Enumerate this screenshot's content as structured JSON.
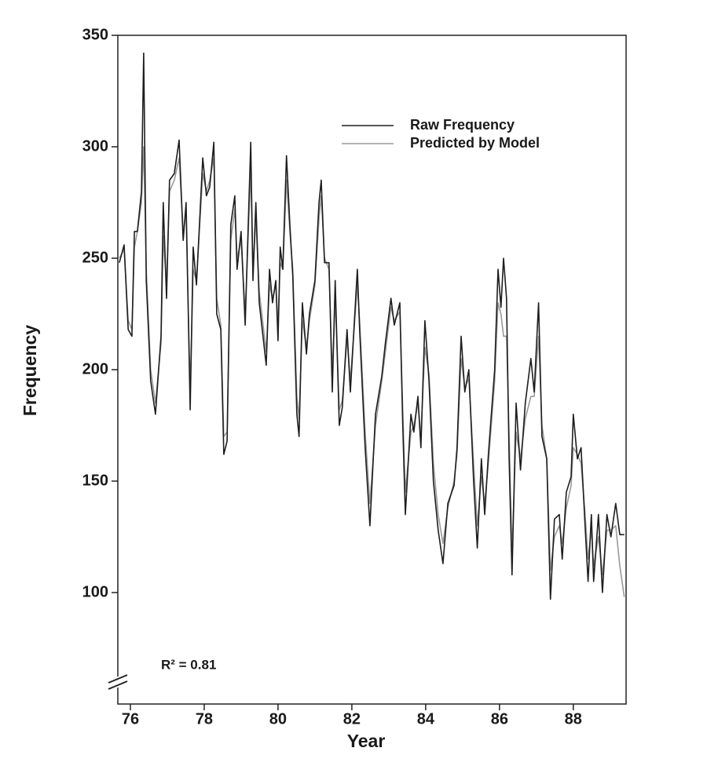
{
  "chart_data": {
    "type": "line",
    "xlabel": "Year",
    "ylabel": "Frequency",
    "annotation": "R² = 0.81",
    "legend": "upper right",
    "xlim": [
      75.66,
      89.43
    ],
    "xticks": [
      76,
      78,
      80,
      82,
      84,
      86,
      88
    ],
    "ylim": [
      50,
      350
    ],
    "yticks": [
      100,
      150,
      200,
      250,
      300,
      350
    ],
    "x": [
      75.7,
      75.83,
      75.94,
      76.04,
      76.11,
      76.19,
      76.3,
      76.36,
      76.43,
      76.55,
      76.68,
      76.83,
      76.89,
      76.98,
      77.06,
      77.19,
      77.32,
      77.43,
      77.51,
      77.62,
      77.7,
      77.79,
      77.96,
      78.06,
      78.15,
      78.26,
      78.34,
      78.45,
      78.53,
      78.62,
      78.72,
      78.83,
      78.89,
      79.0,
      79.11,
      79.26,
      79.32,
      79.4,
      79.49,
      79.68,
      79.77,
      79.85,
      79.94,
      80.0,
      80.06,
      80.13,
      80.23,
      80.32,
      80.4,
      80.51,
      80.57,
      80.66,
      80.77,
      80.85,
      81.0,
      81.11,
      81.17,
      81.26,
      81.38,
      81.47,
      81.55,
      81.66,
      81.74,
      81.87,
      81.96,
      82.15,
      82.21,
      82.36,
      82.49,
      82.64,
      82.81,
      82.91,
      83.06,
      83.15,
      83.3,
      83.38,
      83.45,
      83.6,
      83.68,
      83.79,
      83.87,
      83.98,
      84.09,
      84.21,
      84.34,
      84.47,
      84.6,
      84.77,
      84.85,
      84.96,
      85.06,
      85.17,
      85.3,
      85.4,
      85.51,
      85.6,
      85.7,
      85.87,
      85.96,
      86.04,
      86.11,
      86.19,
      86.26,
      86.34,
      86.45,
      86.57,
      86.7,
      86.85,
      86.94,
      87.06,
      87.15,
      87.28,
      87.38,
      87.49,
      87.62,
      87.7,
      87.81,
      87.94,
      88.0,
      88.11,
      88.21,
      88.32,
      88.4,
      88.49,
      88.55,
      88.68,
      88.79,
      88.91,
      89.02,
      89.15,
      89.26,
      89.38
    ],
    "series": [
      {
        "name": "Raw Frequency",
        "color": "#1e1e1e",
        "values": [
          248,
          256,
          218,
          215,
          262,
          262,
          280,
          342,
          240,
          195,
          180,
          215,
          275,
          232,
          285,
          288,
          303,
          258,
          275,
          182,
          255,
          238,
          295,
          278,
          282,
          302,
          225,
          218,
          162,
          168,
          265,
          278,
          245,
          262,
          220,
          302,
          240,
          275,
          230,
          202,
          245,
          230,
          240,
          213,
          255,
          245,
          296,
          265,
          242,
          180,
          170,
          230,
          207,
          225,
          240,
          275,
          285,
          248,
          248,
          190,
          240,
          175,
          183,
          218,
          190,
          245,
          218,
          165,
          130,
          180,
          197,
          212,
          232,
          220,
          230,
          175,
          135,
          180,
          172,
          188,
          165,
          222,
          195,
          150,
          128,
          113,
          140,
          148,
          165,
          215,
          190,
          200,
          150,
          120,
          160,
          135,
          162,
          200,
          245,
          228,
          250,
          232,
          160,
          108,
          185,
          155,
          185,
          205,
          190,
          230,
          170,
          160,
          97,
          133,
          135,
          115,
          145,
          152,
          180,
          160,
          165,
          130,
          105,
          135,
          105,
          135,
          100,
          135,
          125,
          140,
          126,
          126
        ]
      },
      {
        "name": "Predicted by Model",
        "color": "#9a9a9a",
        "values": [
          250,
          254,
          222,
          218,
          255,
          262,
          275,
          300,
          245,
          200,
          185,
          212,
          260,
          238,
          280,
          285,
          295,
          262,
          270,
          190,
          245,
          240,
          288,
          280,
          285,
          295,
          232,
          220,
          170,
          172,
          258,
          272,
          250,
          258,
          225,
          290,
          245,
          268,
          235,
          208,
          238,
          232,
          238,
          220,
          248,
          245,
          285,
          262,
          245,
          188,
          178,
          222,
          210,
          222,
          238,
          268,
          278,
          250,
          245,
          198,
          232,
          182,
          186,
          214,
          195,
          238,
          222,
          172,
          140,
          175,
          195,
          208,
          228,
          222,
          226,
          182,
          145,
          172,
          175,
          185,
          170,
          210,
          198,
          158,
          135,
          122,
          138,
          150,
          162,
          205,
          192,
          196,
          158,
          130,
          152,
          140,
          158,
          195,
          230,
          225,
          215,
          215,
          170,
          118,
          172,
          160,
          178,
          188,
          188,
          215,
          175,
          160,
          110,
          125,
          130,
          122,
          138,
          148,
          165,
          162,
          158,
          135,
          115,
          128,
          112,
          125,
          108,
          128,
          128,
          130,
          112,
          98
        ]
      }
    ]
  }
}
